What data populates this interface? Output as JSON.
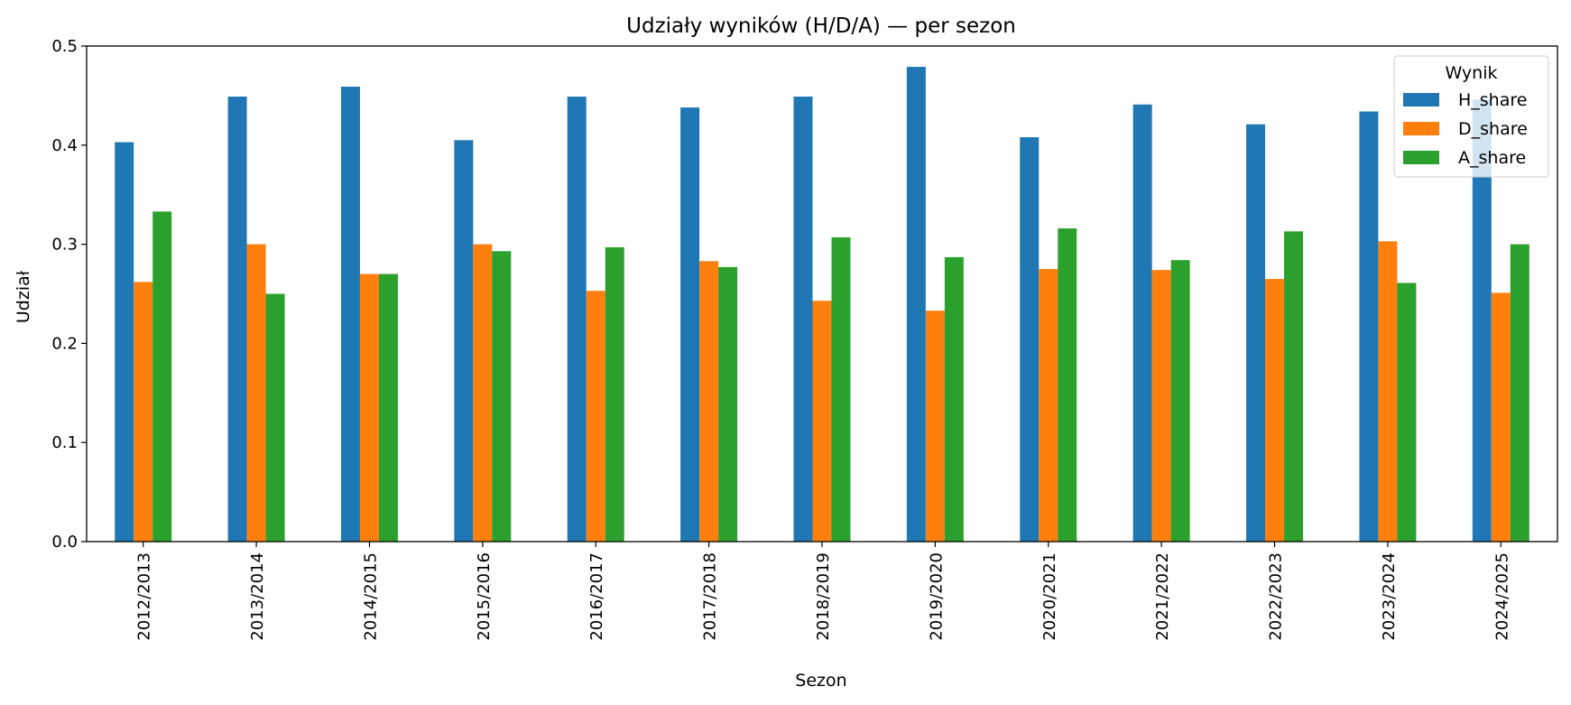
{
  "chart_data": {
    "type": "bar",
    "title": "Udziały wyników (H/D/A) — per sezon",
    "xlabel": "Sezon",
    "ylabel": "Udział",
    "ylim": [
      0,
      0.5
    ],
    "yticks": [
      "0.0",
      "0.1",
      "0.2",
      "0.3",
      "0.4",
      "0.5"
    ],
    "categories": [
      "2012/2013",
      "2013/2014",
      "2014/2015",
      "2015/2016",
      "2016/2017",
      "2017/2018",
      "2018/2019",
      "2019/2020",
      "2020/2021",
      "2021/2022",
      "2022/2023",
      "2023/2024",
      "2024/2025"
    ],
    "legend": {
      "title": "Wynik",
      "position": "top-right"
    },
    "grid": false,
    "series": [
      {
        "name": "H_share",
        "color": "#1f77b4",
        "values": [
          0.403,
          0.449,
          0.459,
          0.405,
          0.449,
          0.438,
          0.449,
          0.479,
          0.408,
          0.441,
          0.421,
          0.434,
          0.446
        ]
      },
      {
        "name": "D_share",
        "color": "#ff7f0e",
        "values": [
          0.262,
          0.3,
          0.27,
          0.3,
          0.253,
          0.283,
          0.243,
          0.233,
          0.275,
          0.274,
          0.265,
          0.303,
          0.251
        ]
      },
      {
        "name": "A_share",
        "color": "#2ca02c",
        "values": [
          0.333,
          0.25,
          0.27,
          0.293,
          0.297,
          0.277,
          0.307,
          0.287,
          0.316,
          0.284,
          0.313,
          0.261,
          0.3
        ]
      }
    ]
  }
}
